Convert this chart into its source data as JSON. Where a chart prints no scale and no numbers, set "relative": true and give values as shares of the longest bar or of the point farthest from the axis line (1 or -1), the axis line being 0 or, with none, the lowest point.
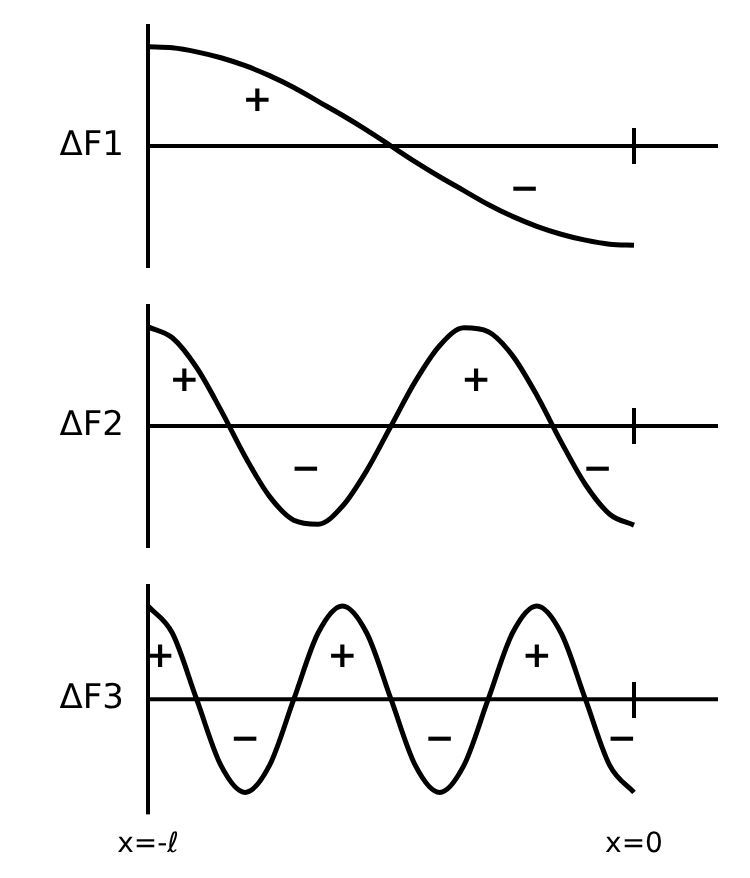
{
  "chart_data": [
    {
      "type": "line",
      "ylabel": "ΔF1",
      "relative": true,
      "categories": [
        null,
        null,
        null,
        null,
        null,
        null,
        null,
        null,
        null,
        null,
        null,
        null,
        null,
        null,
        null,
        null,
        null,
        null,
        null,
        null,
        null
      ],
      "series": [
        {
          "color": "#000000",
          "values": [
            1,
            0.99,
            0.95,
            0.89,
            0.81,
            0.71,
            0.59,
            0.45,
            0.31,
            0.16,
            0,
            -0.16,
            -0.31,
            -0.45,
            -0.59,
            -0.71,
            -0.81,
            -0.89,
            -0.95,
            -0.99,
            -1
          ]
        }
      ],
      "annotations": [
        "+",
        "−"
      ]
    },
    {
      "type": "line",
      "ylabel": "ΔF2",
      "relative": true,
      "categories": [
        null,
        null,
        null,
        null,
        null,
        null,
        null,
        null,
        null,
        null,
        null,
        null,
        null,
        null,
        null,
        null,
        null,
        null,
        null,
        null,
        null
      ],
      "series": [
        {
          "color": "#000000",
          "values": [
            1,
            0.89,
            0.59,
            0.16,
            -0.31,
            -0.71,
            -0.95,
            -0.99,
            -0.81,
            -0.45,
            0,
            0.45,
            0.81,
            0.99,
            0.95,
            0.71,
            0.31,
            -0.16,
            -0.59,
            -0.89,
            -1
          ]
        }
      ],
      "annotations": [
        "+",
        "−",
        "+",
        "−"
      ]
    },
    {
      "type": "line",
      "ylabel": "ΔF3",
      "relative": true,
      "categories": [
        "x=-ℓ",
        null,
        null,
        null,
        null,
        null,
        null,
        null,
        null,
        null,
        null,
        null,
        null,
        null,
        null,
        null,
        null,
        null,
        null,
        null,
        "x=0"
      ],
      "series": [
        {
          "color": "#000000",
          "values": [
            1,
            0.71,
            0,
            -0.71,
            -1,
            -0.71,
            0,
            0.71,
            1,
            0.71,
            0,
            -0.71,
            -1,
            -0.71,
            0,
            0.71,
            1,
            0.71,
            0,
            -0.71,
            -1
          ]
        }
      ],
      "annotations": [
        "+",
        "−",
        "+",
        "−",
        "+",
        "−"
      ]
    }
  ]
}
